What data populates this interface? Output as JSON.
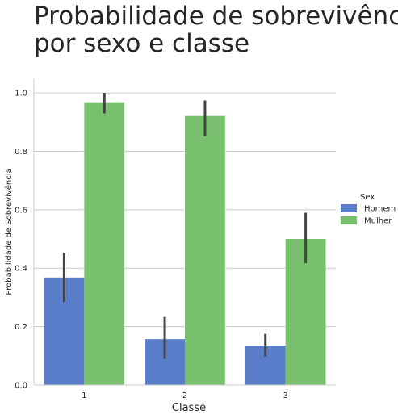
{
  "chart_data": {
    "type": "bar",
    "title_lines": [
      "Probabilidade de sobrevivência",
      "por sexo e classe"
    ],
    "xlabel": "Classe",
    "ylabel": "Probabilidade de Sobrevivência",
    "categories": [
      "1",
      "2",
      "3"
    ],
    "ylim": [
      0,
      1.05
    ],
    "yticks": [
      "0.0",
      "0.2",
      "0.4",
      "0.6",
      "0.8",
      "1.0"
    ],
    "grid": "horizontal",
    "legend": {
      "title": "Sex",
      "placement": "right"
    },
    "series": [
      {
        "name": "Homem",
        "color": "#5a7dc9",
        "values": [
          0.368,
          0.157,
          0.135
        ],
        "ci_low": [
          0.285,
          0.09,
          0.098
        ],
        "ci_high": [
          0.452,
          0.233,
          0.175
        ]
      },
      {
        "name": "Mulher",
        "color": "#78c06e",
        "values": [
          0.968,
          0.921,
          0.5
        ],
        "ci_low": [
          0.93,
          0.852,
          0.417
        ],
        "ci_high": [
          1.0,
          0.974,
          0.59
        ]
      }
    ]
  }
}
